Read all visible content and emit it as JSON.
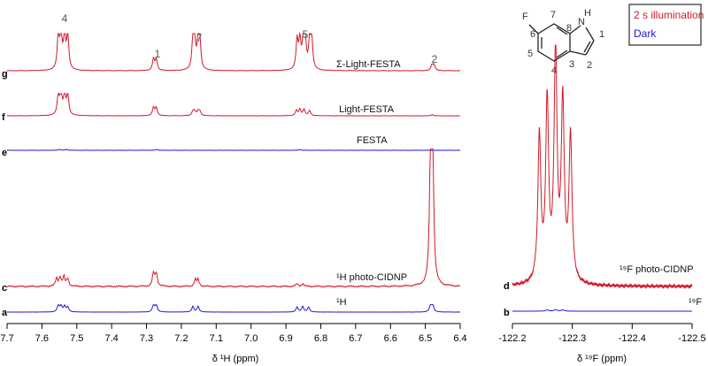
{
  "colors": {
    "illumination": "#d11a2a",
    "dark": "#1a1acf",
    "axis": "#000000"
  },
  "legend": {
    "items": [
      {
        "label": "2 s illumination",
        "color": "#d11a2a"
      },
      {
        "label": "Dark",
        "color": "#1a1acf"
      }
    ]
  },
  "molecule": {
    "substituent": "F",
    "heteroatom": "N",
    "heteroatom_h": "H",
    "numbers": [
      "1",
      "2",
      "3",
      "4",
      "5",
      "6",
      "7",
      "8"
    ]
  },
  "chart_data": [
    {
      "type": "line",
      "xlabel": "δ ¹H (ppm)",
      "xlim": [
        7.7,
        6.4
      ],
      "x_reversed": true,
      "xticks": [
        "7.7",
        "7.6",
        "7.5",
        "7.4",
        "7.3",
        "7.2",
        "7.1",
        "7.0",
        "6.9",
        "6.8",
        "6.7",
        "6.6",
        "6.5",
        "6.4"
      ],
      "peak_labels": [
        {
          "label": "4",
          "ppm": 7.54
        },
        {
          "label": "1",
          "ppm": 7.275
        },
        {
          "label": "7",
          "ppm": 7.157
        },
        {
          "label": "5",
          "ppm": 6.853
        },
        {
          "label": "2",
          "ppm": 6.478
        }
      ],
      "series": [
        {
          "row": "g",
          "name": "Σ-Light-FESTA",
          "color": "#d11a2a",
          "peaks": [
            {
              "ppm": 7.553,
              "height": 1.0
            },
            {
              "ppm": 7.545,
              "height": 1.0
            },
            {
              "ppm": 7.535,
              "height": 1.0
            },
            {
              "ppm": 7.526,
              "height": 1.0
            },
            {
              "ppm": 7.28,
              "height": 0.32
            },
            {
              "ppm": 7.272,
              "height": 0.32
            },
            {
              "ppm": 7.167,
              "height": 0.78
            },
            {
              "ppm": 7.162,
              "height": 0.78
            },
            {
              "ppm": 7.152,
              "height": 0.78
            },
            {
              "ppm": 7.147,
              "height": 0.78
            },
            {
              "ppm": 6.868,
              "height": 0.82
            },
            {
              "ppm": 6.86,
              "height": 0.82
            },
            {
              "ppm": 6.85,
              "height": 0.82
            },
            {
              "ppm": 6.845,
              "height": 0.82
            },
            {
              "ppm": 6.832,
              "height": 0.82
            },
            {
              "ppm": 6.826,
              "height": 0.82
            },
            {
              "ppm": 6.481,
              "height": 0.16
            },
            {
              "ppm": 6.475,
              "height": 0.16
            }
          ]
        },
        {
          "row": "f",
          "name": "Light-FESTA",
          "color": "#d11a2a",
          "peaks": [
            {
              "ppm": 7.553,
              "height": 1.0
            },
            {
              "ppm": 7.545,
              "height": 1.0
            },
            {
              "ppm": 7.535,
              "height": 1.0
            },
            {
              "ppm": 7.526,
              "height": 1.0
            },
            {
              "ppm": 7.28,
              "height": 0.38
            },
            {
              "ppm": 7.272,
              "height": 0.38
            },
            {
              "ppm": 7.167,
              "height": 0.2
            },
            {
              "ppm": 7.162,
              "height": 0.2
            },
            {
              "ppm": 7.152,
              "height": 0.2
            },
            {
              "ppm": 7.147,
              "height": 0.2
            },
            {
              "ppm": 6.87,
              "height": 0.25
            },
            {
              "ppm": 6.86,
              "height": 0.3
            },
            {
              "ppm": 6.848,
              "height": 0.3
            },
            {
              "ppm": 6.832,
              "height": 0.25
            },
            {
              "ppm": 6.48,
              "height": 0.06
            }
          ]
        },
        {
          "row": "e",
          "name": "FESTA",
          "color": "#1a1acf",
          "peaks": [
            {
              "ppm": 7.55,
              "height": 0.05
            },
            {
              "ppm": 7.53,
              "height": 0.05
            },
            {
              "ppm": 7.27,
              "height": 0.05
            },
            {
              "ppm": 6.86,
              "height": 0.04
            }
          ]
        },
        {
          "row": "c",
          "name": "¹H photo-CIDNP",
          "color": "#d11a2a",
          "peaks": [
            {
              "ppm": 7.558,
              "height": 0.06
            },
            {
              "ppm": 7.548,
              "height": 0.07
            },
            {
              "ppm": 7.537,
              "height": 0.07
            },
            {
              "ppm": 7.526,
              "height": 0.06
            },
            {
              "ppm": 7.28,
              "height": 0.1
            },
            {
              "ppm": 7.272,
              "height": 0.1
            },
            {
              "ppm": 7.16,
              "height": 0.05
            },
            {
              "ppm": 7.152,
              "height": 0.05
            },
            {
              "ppm": 6.868,
              "height": 0.02
            },
            {
              "ppm": 6.852,
              "height": 0.02
            },
            {
              "ppm": 6.485,
              "height": 1.0
            },
            {
              "ppm": 6.479,
              "height": 1.0
            }
          ]
        },
        {
          "row": "a",
          "name": "¹H",
          "color": "#1a1acf",
          "peaks": [
            {
              "ppm": 7.553,
              "height": 1.0
            },
            {
              "ppm": 7.545,
              "height": 0.8
            },
            {
              "ppm": 7.535,
              "height": 0.8
            },
            {
              "ppm": 7.526,
              "height": 0.7
            },
            {
              "ppm": 7.28,
              "height": 1.0
            },
            {
              "ppm": 7.272,
              "height": 1.0
            },
            {
              "ppm": 7.167,
              "height": 0.8
            },
            {
              "ppm": 7.152,
              "height": 0.8
            },
            {
              "ppm": 6.868,
              "height": 0.7
            },
            {
              "ppm": 6.852,
              "height": 0.8
            },
            {
              "ppm": 6.835,
              "height": 0.7
            },
            {
              "ppm": 6.485,
              "height": 1.0
            },
            {
              "ppm": 6.479,
              "height": 1.0
            }
          ]
        }
      ]
    },
    {
      "type": "line",
      "xlabel": "δ ¹⁹F (ppm)",
      "xlim": [
        -122.2,
        -122.5
      ],
      "x_reversed": true,
      "xticks": [
        "-122.2",
        "-122.3",
        "-122.4",
        "-122.5"
      ],
      "series": [
        {
          "row": "d",
          "name": "¹⁹F photo-CIDNP",
          "color": "#d11a2a",
          "peaks": [
            {
              "ppm": -122.297,
              "height": 0.63
            },
            {
              "ppm": -122.284,
              "height": 0.77
            },
            {
              "ppm": -122.272,
              "height": 1.0
            },
            {
              "ppm": -122.258,
              "height": 0.77
            },
            {
              "ppm": -122.245,
              "height": 0.63
            }
          ]
        },
        {
          "row": "b",
          "name": "¹⁹F",
          "color": "#1a1acf",
          "peaks": [
            {
              "ppm": -122.284,
              "height": 0.2
            },
            {
              "ppm": -122.272,
              "height": 0.25
            },
            {
              "ppm": -122.258,
              "height": 0.2
            }
          ]
        }
      ]
    }
  ]
}
